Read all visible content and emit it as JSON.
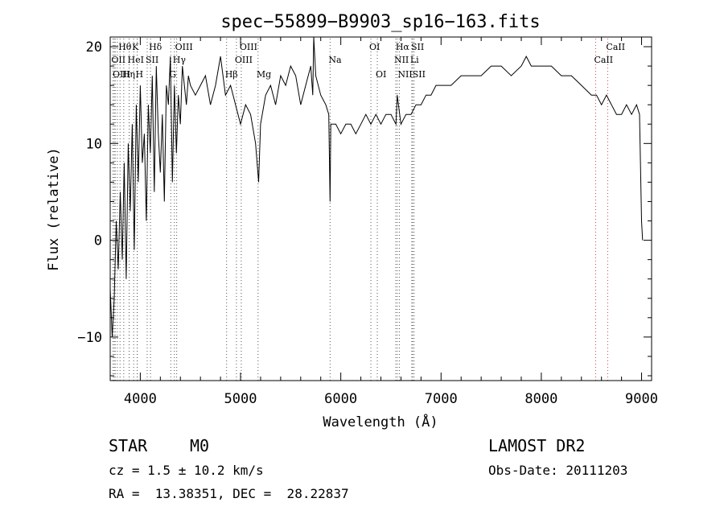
{
  "chart_data": {
    "type": "line",
    "title": "spec−55899−B9903_sp16−163.fits",
    "xlabel": "Wavelength (Å)",
    "ylabel": "Flux (relative)",
    "xlim": [
      3700,
      9100
    ],
    "ylim": [
      -14.5,
      21
    ],
    "x_ticks": [
      4000,
      5000,
      6000,
      7000,
      8000,
      9000
    ],
    "y_ticks": [
      -10,
      0,
      10,
      20
    ],
    "x_tick_labels": [
      "4000",
      "5000",
      "6000",
      "7000",
      "8000",
      "9000"
    ],
    "y_tick_labels": [
      "−10",
      "0",
      "10",
      "20"
    ],
    "grid": false,
    "series": [
      {
        "x": [
          3700,
          3720,
          3740,
          3760,
          3780,
          3800,
          3820,
          3840,
          3860,
          3880,
          3900,
          3920,
          3940,
          3960,
          3980,
          4000,
          4020,
          4040,
          4060,
          4080,
          4100,
          4120,
          4140,
          4160,
          4180,
          4200,
          4220,
          4240,
          4260,
          4280,
          4300,
          4320,
          4340,
          4360,
          4380,
          4400,
          4420,
          4440,
          4460,
          4480,
          4500,
          4550,
          4600,
          4650,
          4700,
          4750,
          4800,
          4850,
          4900,
          4950,
          5000,
          5050,
          5100,
          5150,
          5180,
          5200,
          5250,
          5300,
          5350,
          5400,
          5450,
          5500,
          5550,
          5600,
          5650,
          5700,
          5720,
          5730,
          5750,
          5800,
          5850,
          5880,
          5893,
          5900,
          5950,
          6000,
          6050,
          6100,
          6150,
          6200,
          6250,
          6300,
          6350,
          6400,
          6450,
          6500,
          6550,
          6563,
          6600,
          6650,
          6700,
          6750,
          6800,
          6850,
          6900,
          6950,
          7000,
          7100,
          7200,
          7300,
          7400,
          7500,
          7600,
          7700,
          7800,
          7850,
          7900,
          8000,
          8100,
          8200,
          8300,
          8400,
          8500,
          8550,
          8600,
          8650,
          8700,
          8750,
          8800,
          8850,
          8900,
          8950,
          8980,
          9000,
          9010
        ],
        "y": [
          -5,
          -10,
          -6,
          2,
          -3,
          5,
          -2,
          8,
          -4,
          10,
          3,
          12,
          -1,
          14,
          6,
          16,
          8,
          11,
          2,
          14,
          9,
          17,
          5,
          18,
          11,
          7,
          13,
          4,
          16,
          14,
          19,
          6,
          16,
          9,
          15,
          12,
          18,
          16,
          14,
          17,
          16,
          15,
          16,
          17,
          14,
          16,
          19,
          15,
          16,
          14,
          12,
          14,
          13,
          10,
          6,
          12,
          15,
          16,
          14,
          17,
          16,
          18,
          17,
          14,
          16,
          18,
          15,
          21,
          17,
          15,
          14,
          13,
          4,
          12,
          12,
          11,
          12,
          12,
          11,
          12,
          13,
          12,
          13,
          12,
          13,
          13,
          12,
          15,
          12,
          13,
          13,
          14,
          14,
          15,
          15,
          16,
          16,
          16,
          17,
          17,
          17,
          18,
          18,
          17,
          18,
          19,
          18,
          18,
          18,
          17,
          17,
          16,
          15,
          15,
          14,
          15,
          14,
          13,
          13,
          14,
          13,
          14,
          13,
          2,
          0
        ]
      }
    ],
    "lines": [
      {
        "label": "Hθ",
        "x": 3798,
        "row": 1
      },
      {
        "label": "OII",
        "x": 3727,
        "row": 2
      },
      {
        "label": "OIII",
        "x": 3740,
        "row": 3
      },
      {
        "label": "Hη",
        "x": 3835,
        "row": 3
      },
      {
        "label": "HeI",
        "x": 3889,
        "row": 2
      },
      {
        "label": "K",
        "x": 3934,
        "row": 1
      },
      {
        "label": "SII",
        "x": 4069,
        "row": 2
      },
      {
        "label": "H",
        "x": 3969,
        "row": 3
      },
      {
        "label": "Hδ",
        "x": 4102,
        "row": 1
      },
      {
        "label": "OIII",
        "x": 4363,
        "row": 1
      },
      {
        "label": "Hγ",
        "x": 4340,
        "row": 2
      },
      {
        "label": "G",
        "x": 4304,
        "row": 3
      },
      {
        "label": "OIII",
        "x": 5007,
        "row": 1
      },
      {
        "label": "OIII",
        "x": 4959,
        "row": 2
      },
      {
        "label": "Hβ",
        "x": 4861,
        "row": 3
      },
      {
        "label": "Mg",
        "x": 5175,
        "row": 3
      },
      {
        "label": "Na",
        "x": 5893,
        "row": 2
      },
      {
        "label": "OI",
        "x": 6300,
        "row": 1
      },
      {
        "label": "OI",
        "x": 6364,
        "row": 3
      },
      {
        "label": "Hα",
        "x": 6563,
        "row": 1
      },
      {
        "label": "NII",
        "x": 6548,
        "row": 2
      },
      {
        "label": "NII",
        "x": 6584,
        "row": 3
      },
      {
        "label": "SII",
        "x": 6717,
        "row": 1
      },
      {
        "label": "Li",
        "x": 6708,
        "row": 2
      },
      {
        "label": "SII",
        "x": 6731,
        "row": 3
      },
      {
        "label": "CaII",
        "x": 8662,
        "row": 1
      },
      {
        "label": "CaII",
        "x": 8542,
        "row": 2
      }
    ],
    "extra_lines_x": [
      3750,
      3771,
      3889,
      3970
    ],
    "colors": {
      "spectrum": "#000000",
      "line_marker": "#555555",
      "ca_marker": "#d04040"
    }
  },
  "info": {
    "object_label": "STAR",
    "class_label": "M0",
    "survey_label": "LAMOST DR2",
    "cz_text": "cz = 1.5 ± 10.2 km/s",
    "obs_date_text": "Obs-Date: 20111203",
    "radec_text": "RA =  13.38351, DEC =  28.22837"
  }
}
